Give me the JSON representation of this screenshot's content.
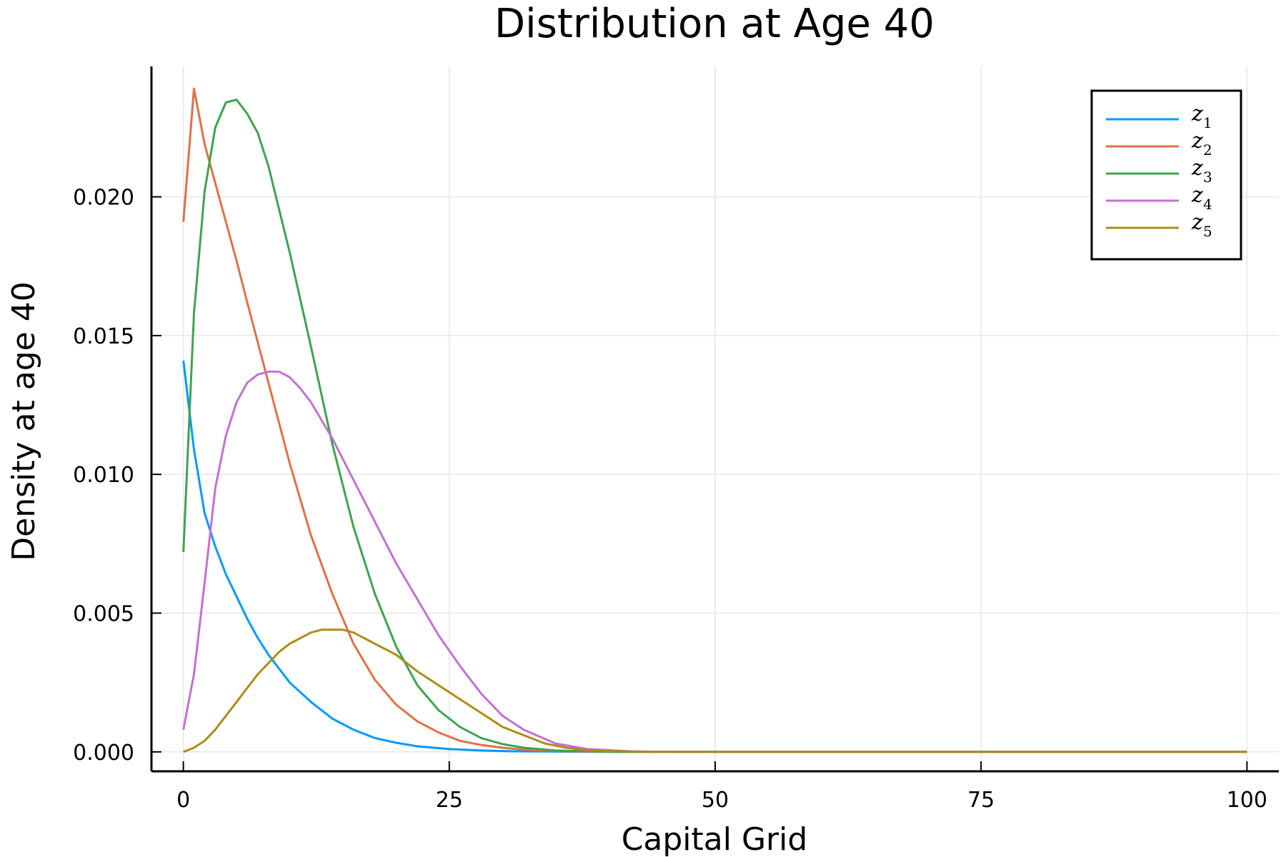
{
  "chart_data": {
    "type": "line",
    "title": "Distribution at Age 40",
    "xlabel": "Capital Grid",
    "ylabel": "Density at age 40",
    "xlim": [
      -3,
      103
    ],
    "ylim": [
      -0.0007,
      0.0247
    ],
    "xticks": [
      0,
      25,
      50,
      75,
      100
    ],
    "xtick_labels": [
      "0",
      "25",
      "50",
      "75",
      "100"
    ],
    "yticks": [
      0.0,
      0.005,
      0.01,
      0.015,
      0.02
    ],
    "ytick_labels": [
      "0.000",
      "0.005",
      "0.010",
      "0.015",
      "0.020"
    ],
    "grid": true,
    "legend_position": "top-right",
    "series": [
      {
        "name": "z",
        "subscript": "1",
        "color": "#009AFA",
        "x": [
          0,
          1,
          2,
          3,
          4,
          5,
          6,
          7,
          8,
          9,
          10,
          12,
          14,
          16,
          18,
          20,
          22,
          25,
          28,
          31,
          35,
          40,
          45,
          50,
          60,
          70,
          80,
          90,
          100
        ],
        "y": [
          0.0141,
          0.0109,
          0.0086,
          0.0074,
          0.0064,
          0.0056,
          0.0048,
          0.0041,
          0.0035,
          0.003,
          0.0025,
          0.0018,
          0.0012,
          0.0008,
          0.0005,
          0.00033,
          0.0002,
          0.0001,
          5e-05,
          2e-05,
          1e-05,
          0.0,
          0.0,
          0.0,
          0.0,
          0.0,
          0.0,
          0.0,
          0.0
        ]
      },
      {
        "name": "z",
        "subscript": "2",
        "color": "#E36F47",
        "x": [
          0,
          1,
          2,
          3,
          4,
          5,
          6,
          8,
          10,
          12,
          14,
          16,
          18,
          20,
          22,
          24,
          26,
          28,
          30,
          32,
          35,
          38,
          42,
          45,
          50,
          60,
          70,
          80,
          90,
          100
        ],
        "y": [
          0.0191,
          0.0239,
          0.0219,
          0.0205,
          0.0191,
          0.0177,
          0.0162,
          0.0133,
          0.0104,
          0.0078,
          0.0057,
          0.0039,
          0.0026,
          0.0017,
          0.0011,
          0.0007,
          0.0004,
          0.00025,
          0.00015,
          8e-05,
          3e-05,
          1e-05,
          0.0,
          0.0,
          0.0,
          0.0,
          0.0,
          0.0,
          0.0,
          0.0
        ]
      },
      {
        "name": "z",
        "subscript": "3",
        "color": "#3EA44E",
        "x": [
          0,
          1,
          2,
          3,
          4,
          5,
          6,
          7,
          8,
          10,
          12,
          14,
          16,
          18,
          20,
          22,
          24,
          26,
          28,
          30,
          32,
          35,
          38,
          42,
          45,
          50,
          60,
          70,
          80,
          90,
          100
        ],
        "y": [
          0.0072,
          0.0158,
          0.0202,
          0.0225,
          0.0234,
          0.0235,
          0.023,
          0.0223,
          0.0211,
          0.018,
          0.0146,
          0.0111,
          0.0081,
          0.0057,
          0.0038,
          0.0024,
          0.0015,
          0.0009,
          0.0005,
          0.00028,
          0.00015,
          5e-05,
          2e-05,
          0.0,
          0.0,
          0.0,
          0.0,
          0.0,
          0.0,
          0.0,
          0.0
        ]
      },
      {
        "name": "z",
        "subscript": "4",
        "color": "#C271D2",
        "x": [
          0,
          1,
          2,
          3,
          4,
          5,
          6,
          7,
          8,
          9,
          10,
          11,
          12,
          14,
          16,
          18,
          20,
          22,
          24,
          26,
          28,
          30,
          32,
          35,
          38,
          42,
          45,
          50,
          60,
          70,
          80,
          90,
          100
        ],
        "y": [
          0.0008,
          0.0028,
          0.0061,
          0.0095,
          0.0114,
          0.0126,
          0.0133,
          0.0136,
          0.0137,
          0.0137,
          0.0135,
          0.0131,
          0.0126,
          0.0113,
          0.0098,
          0.0083,
          0.0068,
          0.0055,
          0.0042,
          0.0031,
          0.0021,
          0.0013,
          0.0008,
          0.0003,
          0.0001,
          2e-05,
          0.0,
          0.0,
          0.0,
          0.0,
          0.0,
          0.0,
          0.0
        ]
      },
      {
        "name": "z",
        "subscript": "5",
        "color": "#AC8D18",
        "x": [
          0,
          1,
          2,
          3,
          4,
          5,
          6,
          7,
          8,
          9,
          10,
          11,
          12,
          13,
          14,
          15,
          16,
          17,
          18,
          19,
          20,
          22,
          24,
          26,
          28,
          30,
          32,
          34,
          36,
          38,
          42,
          45,
          50,
          60,
          70,
          80,
          90,
          100
        ],
        "y": [
          0.0,
          0.00015,
          0.0004,
          0.0008,
          0.0013,
          0.0018,
          0.0023,
          0.0028,
          0.0032,
          0.0036,
          0.0039,
          0.0041,
          0.0043,
          0.0044,
          0.0044,
          0.0044,
          0.0043,
          0.0041,
          0.0039,
          0.0037,
          0.0035,
          0.0029,
          0.0024,
          0.0019,
          0.0014,
          0.0009,
          0.0006,
          0.0003,
          0.00015,
          6e-05,
          1e-05,
          0.0,
          0.0,
          0.0,
          0.0,
          0.0,
          0.0,
          0.0
        ]
      }
    ]
  }
}
